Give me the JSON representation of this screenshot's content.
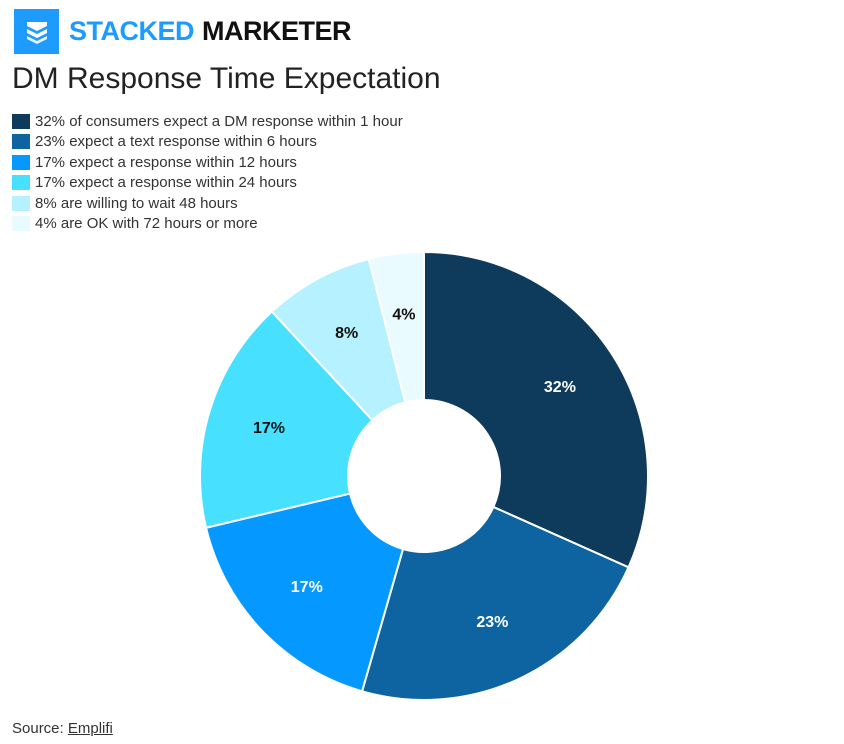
{
  "brand": {
    "name_part1": "STACKED",
    "name_part2": "MARKETER",
    "color": "#1e9bff"
  },
  "title": "DM Response Time Expectation",
  "source": {
    "prefix": "Source: ",
    "link_text": "Emplifi"
  },
  "chart_data": {
    "type": "pie",
    "variant": "donut",
    "title": "DM Response Time Expectation",
    "legend_position": "top-left",
    "slices": [
      {
        "label": "32% of consumers expect a DM response within 1 hour",
        "value": 32,
        "data_label": "32%",
        "color": "#0e3a5c",
        "label_color": "#ffffff"
      },
      {
        "label": "23% expect a text response within 6 hours",
        "value": 23,
        "data_label": "23%",
        "color": "#0d64a0",
        "label_color": "#ffffff"
      },
      {
        "label": "17% expect a response within 12 hours",
        "value": 17,
        "data_label": "17%",
        "color": "#0599ff",
        "label_color": "#ffffff"
      },
      {
        "label": "17% expect a response within 24 hours",
        "value": 17,
        "data_label": "17%",
        "color": "#48e0ff",
        "label_color": "#111111"
      },
      {
        "label": "8% are willing to wait 48 hours",
        "value": 8,
        "data_label": "8%",
        "color": "#b5f1ff",
        "label_color": "#111111"
      },
      {
        "label": "4% are OK with 72 hours or more",
        "value": 4,
        "data_label": "4%",
        "color": "#eafbff",
        "label_color": "#111111"
      }
    ]
  }
}
